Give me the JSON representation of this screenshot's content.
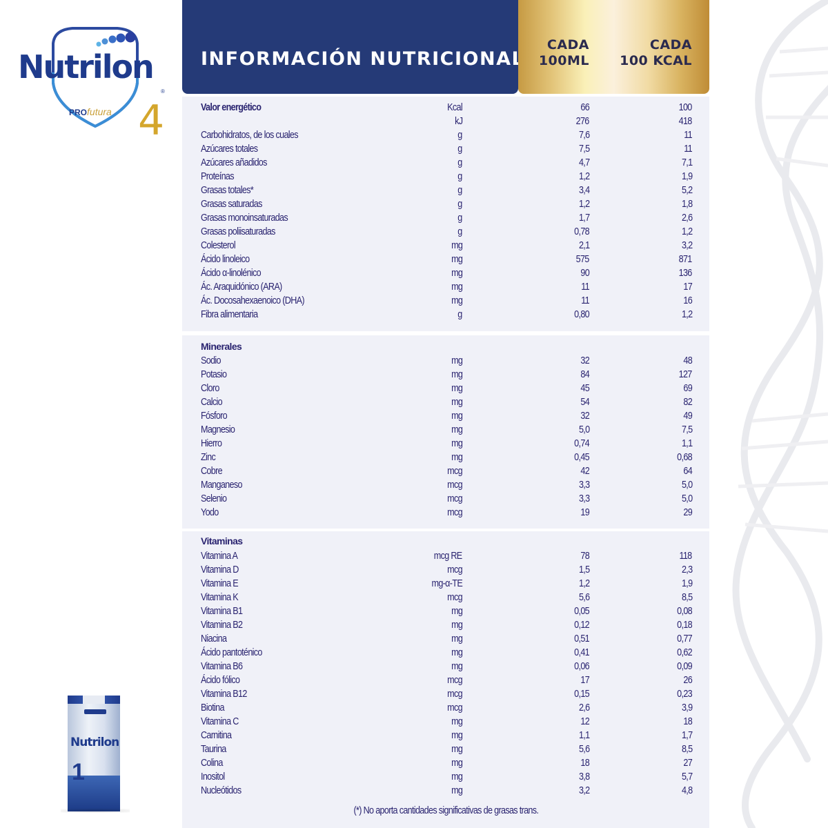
{
  "brand": {
    "name": "Nutrilon",
    "registered": "®",
    "line_pro": "PRO",
    "line_futura": "futura",
    "stage": "4"
  },
  "carton": {
    "brand": "Nutrilon",
    "stage": "1"
  },
  "header": {
    "title": "INFORMACIÓN NUTRICIONAL",
    "col1_line1": "CADA",
    "col1_line2": "100ML",
    "col2_line1": "CADA",
    "col2_line2": "100 KCAL"
  },
  "colors": {
    "navy": "#253a77",
    "text": "#2a2470",
    "panel_bg": "#f0f1f8",
    "gold": "#d4a62c"
  },
  "sections": {
    "energy": {
      "rows": [
        {
          "label": "Valor energético",
          "unit": "Kcal",
          "per100ml": "66",
          "per100kcal": "100",
          "bold": true
        },
        {
          "label": "",
          "unit": "kJ",
          "per100ml": "276",
          "per100kcal": "418"
        },
        {
          "label": "Carbohidratos, de los cuales",
          "unit": "g",
          "per100ml": "7,6",
          "per100kcal": "11"
        },
        {
          "label": "Azúcares totales",
          "unit": "g",
          "per100ml": "7,5",
          "per100kcal": "11"
        },
        {
          "label": "Azúcares añadidos",
          "unit": "g",
          "per100ml": "4,7",
          "per100kcal": "7,1"
        },
        {
          "label": "Proteínas",
          "unit": "g",
          "per100ml": "1,2",
          "per100kcal": "1,9"
        },
        {
          "label": "Grasas totales*",
          "unit": "g",
          "per100ml": "3,4",
          "per100kcal": "5,2"
        },
        {
          "label": "Grasas saturadas",
          "unit": "g",
          "per100ml": "1,2",
          "per100kcal": "1,8"
        },
        {
          "label": "Grasas monoinsaturadas",
          "unit": "g",
          "per100ml": "1,7",
          "per100kcal": "2,6"
        },
        {
          "label": "Grasas poliisaturadas",
          "unit": "g",
          "per100ml": "0,78",
          "per100kcal": "1,2"
        },
        {
          "label": "Colesterol",
          "unit": "mg",
          "per100ml": "2,1",
          "per100kcal": "3,2"
        },
        {
          "label": "Ácido linoleico",
          "unit": "mg",
          "per100ml": "575",
          "per100kcal": "871"
        },
        {
          "label": "Ácido α-linolénico",
          "unit": "mg",
          "per100ml": "90",
          "per100kcal": "136"
        },
        {
          "label": "Ác. Araquidónico (ARA)",
          "unit": "mg",
          "per100ml": "11",
          "per100kcal": "17"
        },
        {
          "label": "Ác. Docosahexaenoico (DHA)",
          "unit": "mg",
          "per100ml": "11",
          "per100kcal": "16"
        },
        {
          "label": "Fibra alimentaria",
          "unit": "g",
          "per100ml": "0,80",
          "per100kcal": "1,2"
        }
      ]
    },
    "minerals": {
      "title": "Minerales",
      "rows": [
        {
          "label": "Sodio",
          "unit": "mg",
          "per100ml": "32",
          "per100kcal": "48"
        },
        {
          "label": "Potasio",
          "unit": "mg",
          "per100ml": "84",
          "per100kcal": "127"
        },
        {
          "label": "Cloro",
          "unit": "mg",
          "per100ml": "45",
          "per100kcal": "69"
        },
        {
          "label": "Calcio",
          "unit": "mg",
          "per100ml": "54",
          "per100kcal": "82"
        },
        {
          "label": "Fósforo",
          "unit": "mg",
          "per100ml": "32",
          "per100kcal": "49"
        },
        {
          "label": "Magnesio",
          "unit": "mg",
          "per100ml": "5,0",
          "per100kcal": "7,5"
        },
        {
          "label": "Hierro",
          "unit": "mg",
          "per100ml": "0,74",
          "per100kcal": "1,1"
        },
        {
          "label": "Zinc",
          "unit": "mg",
          "per100ml": "0,45",
          "per100kcal": "0,68"
        },
        {
          "label": "Cobre",
          "unit": "mcg",
          "per100ml": "42",
          "per100kcal": "64"
        },
        {
          "label": "Manganeso",
          "unit": "mcg",
          "per100ml": "3,3",
          "per100kcal": "5,0"
        },
        {
          "label": "Selenio",
          "unit": "mcg",
          "per100ml": "3,3",
          "per100kcal": "5,0"
        },
        {
          "label": "Yodo",
          "unit": "mcg",
          "per100ml": "19",
          "per100kcal": "29"
        }
      ]
    },
    "vitamins": {
      "title": "Vitaminas",
      "rows": [
        {
          "label": "Vitamina A",
          "unit": "mcg RE",
          "per100ml": "78",
          "per100kcal": "118"
        },
        {
          "label": "Vitamina D",
          "unit": "mcg",
          "per100ml": "1,5",
          "per100kcal": "2,3"
        },
        {
          "label": "Vitamina E",
          "unit": "mg-α-TE",
          "per100ml": "1,2",
          "per100kcal": "1,9"
        },
        {
          "label": "Vitamina K",
          "unit": "mcg",
          "per100ml": "5,6",
          "per100kcal": "8,5"
        },
        {
          "label": "Vitamina B1",
          "unit": "mg",
          "per100ml": "0,05",
          "per100kcal": "0,08"
        },
        {
          "label": "Vitamina B2",
          "unit": "mg",
          "per100ml": "0,12",
          "per100kcal": "0,18"
        },
        {
          "label": "Niacina",
          "unit": "mg",
          "per100ml": "0,51",
          "per100kcal": "0,77"
        },
        {
          "label": "Ácido pantoténico",
          "unit": "mg",
          "per100ml": "0,41",
          "per100kcal": "0,62"
        },
        {
          "label": "Vitamina B6",
          "unit": "mg",
          "per100ml": "0,06",
          "per100kcal": "0,09"
        },
        {
          "label": "Ácido fólico",
          "unit": "mcg",
          "per100ml": "17",
          "per100kcal": "26"
        },
        {
          "label": "Vitamina B12",
          "unit": "mcg",
          "per100ml": "0,15",
          "per100kcal": "0,23"
        },
        {
          "label": "Biotina",
          "unit": "mcg",
          "per100ml": "2,6",
          "per100kcal": "3,9"
        },
        {
          "label": "Vitamina C",
          "unit": "mg",
          "per100ml": "12",
          "per100kcal": "18"
        },
        {
          "label": "Carnitina",
          "unit": "mg",
          "per100ml": "1,1",
          "per100kcal": "1,7"
        },
        {
          "label": "Taurina",
          "unit": "mg",
          "per100ml": "5,6",
          "per100kcal": "8,5"
        },
        {
          "label": "Colina",
          "unit": "mg",
          "per100ml": "18",
          "per100kcal": "27"
        },
        {
          "label": "Inositol",
          "unit": "mg",
          "per100ml": "3,8",
          "per100kcal": "5,7"
        },
        {
          "label": "Nucleótidos",
          "unit": "mg",
          "per100ml": "3,2",
          "per100kcal": "4,8"
        }
      ]
    }
  },
  "footnote": "(*) No aporta cantidades significativas de grasas trans."
}
